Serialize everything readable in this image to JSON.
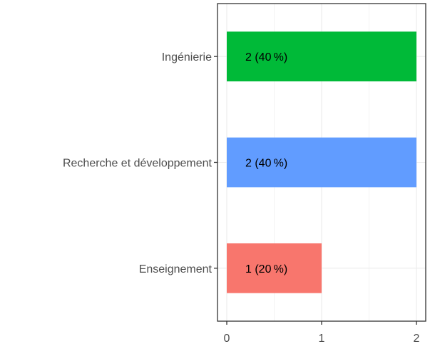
{
  "chart_data": {
    "type": "bar",
    "orientation": "horizontal",
    "categories": [
      "Ingénierie",
      "Recherche et développement",
      "Enseignement"
    ],
    "values": [
      2,
      2,
      1
    ],
    "bar_labels": [
      "2 (40 %)",
      "2 (40 %)",
      "1 (20 %)"
    ],
    "colors": [
      "#00BA38",
      "#619CFF",
      "#F8766D"
    ],
    "xlim": [
      0,
      2
    ],
    "x_ticks": [
      0,
      1,
      2
    ],
    "x_tick_labels": [
      "0",
      "1",
      "2"
    ],
    "grid": true,
    "legend": "none",
    "title": "",
    "xlabel": "",
    "ylabel": ""
  }
}
